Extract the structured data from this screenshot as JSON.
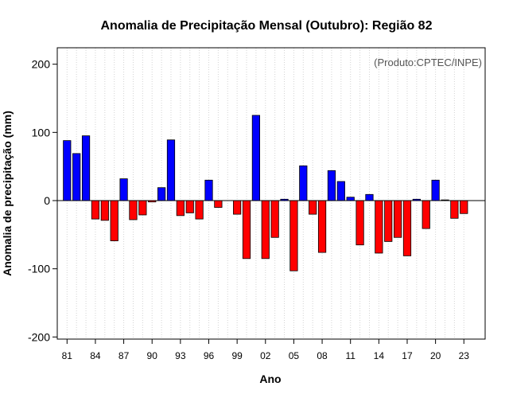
{
  "chart_data": {
    "type": "bar",
    "title": "Anomalia de Precipitação Mensal (Outubro): Região 82",
    "subtitle": "(Produto:CPTEC/INPE)",
    "xlabel": "Ano",
    "ylabel": "Anomalia de precipitação (mm)",
    "ylim": [
      -200,
      200
    ],
    "y_ticks": [
      "-200",
      "-100",
      "0",
      "100",
      "200"
    ],
    "x_tick_labels": [
      "81",
      "84",
      "87",
      "90",
      "93",
      "96",
      "99",
      "02",
      "05",
      "08",
      "11",
      "14",
      "17",
      "20",
      "23"
    ],
    "grid": "vertical dotted",
    "colors": {
      "positive": "#0000ff",
      "negative": "#ff0000",
      "outline": "#000000",
      "grid": "#d3d3d3"
    },
    "categories": [
      "1981",
      "1982",
      "1983",
      "1984",
      "1985",
      "1986",
      "1987",
      "1988",
      "1989",
      "1990",
      "1991",
      "1992",
      "1993",
      "1994",
      "1995",
      "1996",
      "1997",
      "1998",
      "1999",
      "2000",
      "2001",
      "2002",
      "2003",
      "2004",
      "2005",
      "2006",
      "2007",
      "2008",
      "2009",
      "2010",
      "2011",
      "2012",
      "2013",
      "2014",
      "2015",
      "2016",
      "2017",
      "2018",
      "2019",
      "2020",
      "2021",
      "2022",
      "2023"
    ],
    "values": [
      88,
      69,
      95,
      -27,
      -29,
      -59,
      32,
      -28,
      -21,
      -2,
      19,
      89,
      -22,
      -18,
      -27,
      30,
      -10,
      0,
      -20,
      -85,
      125,
      -85,
      -54,
      2,
      -103,
      51,
      -20,
      -76,
      44,
      28,
      5,
      -65,
      9,
      -77,
      -60,
      -54,
      -81,
      2,
      -41,
      30,
      1,
      -26,
      -19
    ]
  }
}
